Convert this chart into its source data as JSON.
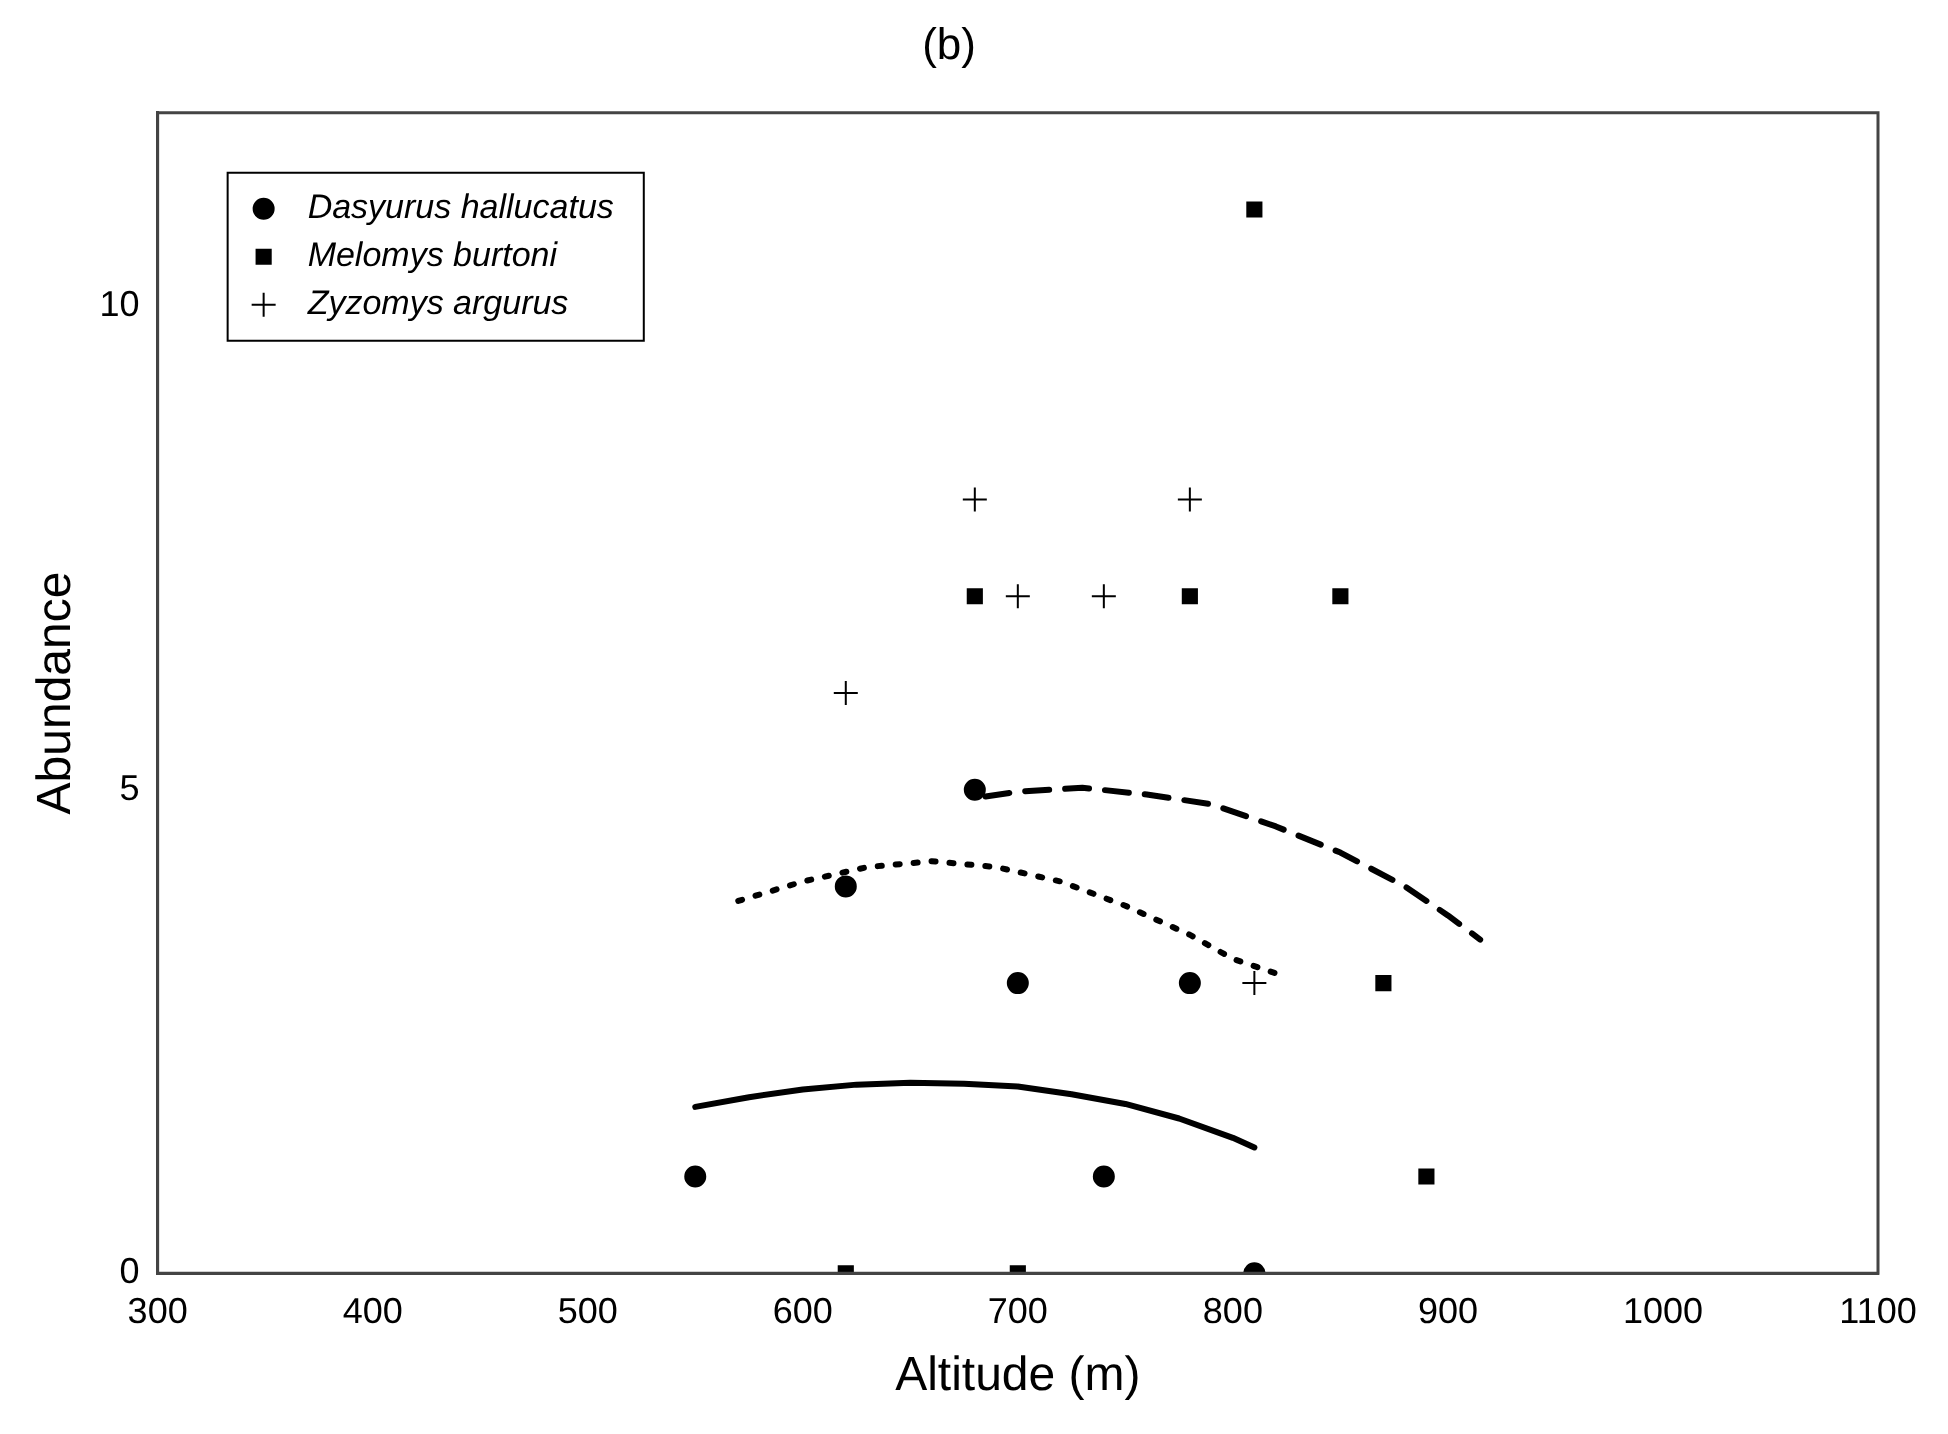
{
  "chart_data": {
    "type": "scatter",
    "title": "(b)",
    "xlabel": "Altitude (m)",
    "ylabel": "Abundance",
    "xlim": [
      300,
      1100
    ],
    "xticks": [
      300,
      400,
      500,
      600,
      700,
      800,
      900,
      1000,
      1100
    ],
    "ylim": [
      0,
      12
    ],
    "yticks": [
      0,
      5,
      10
    ],
    "grid": false,
    "legend": "top left",
    "series": [
      {
        "name": "Dasyurus hallucatus",
        "color": "#000000",
        "marker": "circle",
        "x": [
          550,
          620,
          680,
          700,
          740,
          780,
          810
        ],
        "values": [
          1,
          4,
          5,
          3,
          1,
          3,
          0
        ]
      },
      {
        "name": "Melomys burtoni",
        "color": "#000000",
        "marker": "square",
        "x": [
          620,
          680,
          700,
          780,
          810,
          850,
          870,
          890
        ],
        "values": [
          0,
          7,
          0,
          7,
          11,
          7,
          3,
          1
        ]
      },
      {
        "name": "Zyzomys argurus",
        "color": "#000000",
        "marker": "cross",
        "x": [
          620,
          680,
          700,
          740,
          780,
          810
        ],
        "values": [
          6,
          8,
          7,
          7,
          8,
          3
        ]
      },
      {
        "type": "line",
        "color": "#000000",
        "line_style": "solid",
        "marker": "none",
        "x": [
          550,
          575,
          600,
          625,
          650,
          675,
          700,
          725,
          750,
          775,
          800,
          810
        ],
        "values": [
          1.72,
          1.82,
          1.9,
          1.95,
          1.97,
          1.96,
          1.93,
          1.85,
          1.75,
          1.6,
          1.4,
          1.3
        ]
      },
      {
        "type": "line",
        "color": "#000000",
        "line_style": "dotted",
        "marker": "none",
        "x": [
          570,
          600,
          630,
          660,
          690,
          720,
          750,
          780,
          800,
          820
        ],
        "values": [
          3.85,
          4.05,
          4.2,
          4.26,
          4.2,
          4.05,
          3.8,
          3.5,
          3.25,
          3.1
        ]
      },
      {
        "type": "line",
        "color": "#000000",
        "line_style": "dashed",
        "marker": "none",
        "x": [
          685,
          700,
          730,
          760,
          790,
          820,
          850,
          880,
          900,
          915
        ],
        "values": [
          4.93,
          4.98,
          5.02,
          4.95,
          4.85,
          4.62,
          4.35,
          4.0,
          3.7,
          3.45
        ]
      }
    ]
  }
}
